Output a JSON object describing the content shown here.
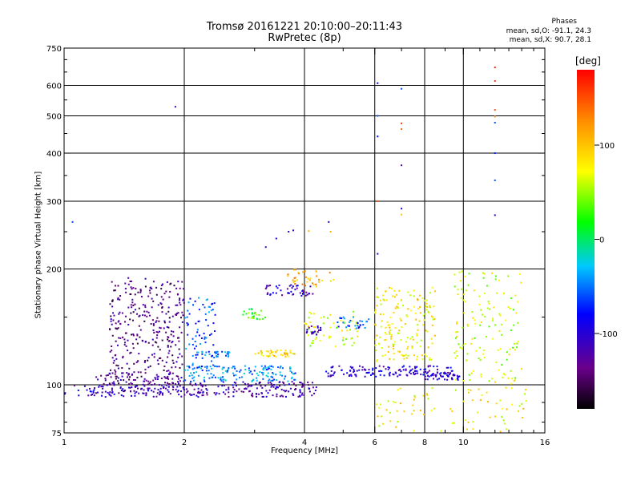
{
  "header": {
    "title_line1": "Tromsø 20161221 20:10:00–20:11:43",
    "title_line2": "RwPretec (8p)"
  },
  "phases": {
    "title": "Phases",
    "line_o": "mean, sd,O: -91.1, 24.3",
    "line_x": "mean, sd,X:  90.7, 28.1"
  },
  "colorbar": {
    "label": "[deg]",
    "ticks": [
      100,
      0,
      -100
    ],
    "range": [
      -180,
      180
    ]
  },
  "chart_data": {
    "type": "scatter",
    "xlabel": "Frequency [MHz]",
    "ylabel": "Stationary phase Virtual Height [km]",
    "x_scale": "log",
    "y_scale": "log",
    "xlim": [
      1,
      16
    ],
    "ylim": [
      75,
      750
    ],
    "x_ticks": [
      1,
      2,
      4,
      6,
      8,
      10,
      16
    ],
    "y_ticks": [
      75,
      100,
      200,
      300,
      400,
      500,
      600,
      750
    ],
    "grid": true,
    "color_key": "phase [deg]",
    "clusters": [
      {
        "x": [
          1.0,
          2.0
        ],
        "y": [
          93,
          100
        ],
        "phase": -110,
        "n": 90
      },
      {
        "x": [
          1.3,
          2.0
        ],
        "y": [
          100,
          190
        ],
        "phase": -135,
        "n": 330
      },
      {
        "x": [
          1.2,
          2.0
        ],
        "y": [
          95,
          108
        ],
        "phase": -125,
        "n": 90
      },
      {
        "x": [
          2.0,
          4.3
        ],
        "y": [
          93,
          102
        ],
        "phase": -115,
        "n": 170
      },
      {
        "x": [
          2.0,
          3.8
        ],
        "y": [
          102,
          112
        ],
        "phase": -45,
        "n": 150
      },
      {
        "x": [
          2.0,
          2.4
        ],
        "y": [
          108,
          170
        ],
        "phase": -60,
        "n": 70
      },
      {
        "x": [
          2.1,
          2.6
        ],
        "y": [
          118,
          122
        ],
        "phase": -50,
        "n": 35
      },
      {
        "x": [
          2.8,
          3.2
        ],
        "y": [
          148,
          158
        ],
        "phase": 30,
        "n": 25
      },
      {
        "x": [
          3.0,
          3.8
        ],
        "y": [
          118,
          123
        ],
        "phase": 90,
        "n": 40
      },
      {
        "x": [
          3.2,
          4.2
        ],
        "y": [
          170,
          182
        ],
        "phase": -110,
        "n": 45
      },
      {
        "x": [
          3.6,
          4.8
        ],
        "y": [
          180,
          200
        ],
        "phase": 110,
        "n": 35
      },
      {
        "x": [
          4.0,
          5.5
        ],
        "y": [
          125,
          155
        ],
        "phase": 60,
        "n": 60
      },
      {
        "x": [
          4.0,
          4.4
        ],
        "y": [
          135,
          142
        ],
        "phase": -110,
        "n": 20
      },
      {
        "x": [
          4.8,
          5.8
        ],
        "y": [
          140,
          150
        ],
        "phase": -60,
        "n": 30
      },
      {
        "x": [
          4.5,
          9.5
        ],
        "y": [
          105,
          112
        ],
        "phase": -100,
        "n": 140
      },
      {
        "x": [
          6.0,
          8.5
        ],
        "y": [
          115,
          180
        ],
        "phase": 80,
        "n": 170
      },
      {
        "x": [
          8.0,
          9.8
        ],
        "y": [
          103,
          108
        ],
        "phase": -100,
        "n": 40
      },
      {
        "x": [
          9.5,
          14.0
        ],
        "y": [
          100,
          200
        ],
        "phase": 60,
        "n": 140
      },
      {
        "x": [
          6.0,
          14.5
        ],
        "y": [
          75,
          100
        ],
        "phase": 80,
        "n": 80
      }
    ],
    "points": [
      {
        "x": 1.05,
        "y": 265,
        "phase": -60
      },
      {
        "x": 1.9,
        "y": 528,
        "phase": -120
      },
      {
        "x": 3.65,
        "y": 250,
        "phase": -100
      },
      {
        "x": 3.75,
        "y": 252,
        "phase": -100
      },
      {
        "x": 4.1,
        "y": 251,
        "phase": 110
      },
      {
        "x": 4.6,
        "y": 265,
        "phase": -110
      },
      {
        "x": 4.65,
        "y": 250,
        "phase": 110
      },
      {
        "x": 3.4,
        "y": 240,
        "phase": -100
      },
      {
        "x": 3.2,
        "y": 228,
        "phase": -110
      },
      {
        "x": 6.1,
        "y": 608,
        "phase": -80
      },
      {
        "x": 6.1,
        "y": 500,
        "phase": -60
      },
      {
        "x": 6.1,
        "y": 442,
        "phase": -80
      },
      {
        "x": 6.1,
        "y": 300,
        "phase": 150
      },
      {
        "x": 6.1,
        "y": 219,
        "phase": -110
      },
      {
        "x": 7.0,
        "y": 588,
        "phase": -60
      },
      {
        "x": 7.0,
        "y": 478,
        "phase": 160
      },
      {
        "x": 7.0,
        "y": 462,
        "phase": 140
      },
      {
        "x": 7.0,
        "y": 372,
        "phase": -120
      },
      {
        "x": 7.0,
        "y": 287,
        "phase": -100
      },
      {
        "x": 7.0,
        "y": 277,
        "phase": 100
      },
      {
        "x": 12.0,
        "y": 668,
        "phase": 170
      },
      {
        "x": 12.0,
        "y": 616,
        "phase": 160
      },
      {
        "x": 12.0,
        "y": 518,
        "phase": 150
      },
      {
        "x": 12.0,
        "y": 498,
        "phase": 120
      },
      {
        "x": 12.0,
        "y": 480,
        "phase": -60
      },
      {
        "x": 12.0,
        "y": 400,
        "phase": -70
      },
      {
        "x": 12.0,
        "y": 340,
        "phase": -60
      },
      {
        "x": 12.0,
        "y": 276,
        "phase": -100
      }
    ]
  }
}
